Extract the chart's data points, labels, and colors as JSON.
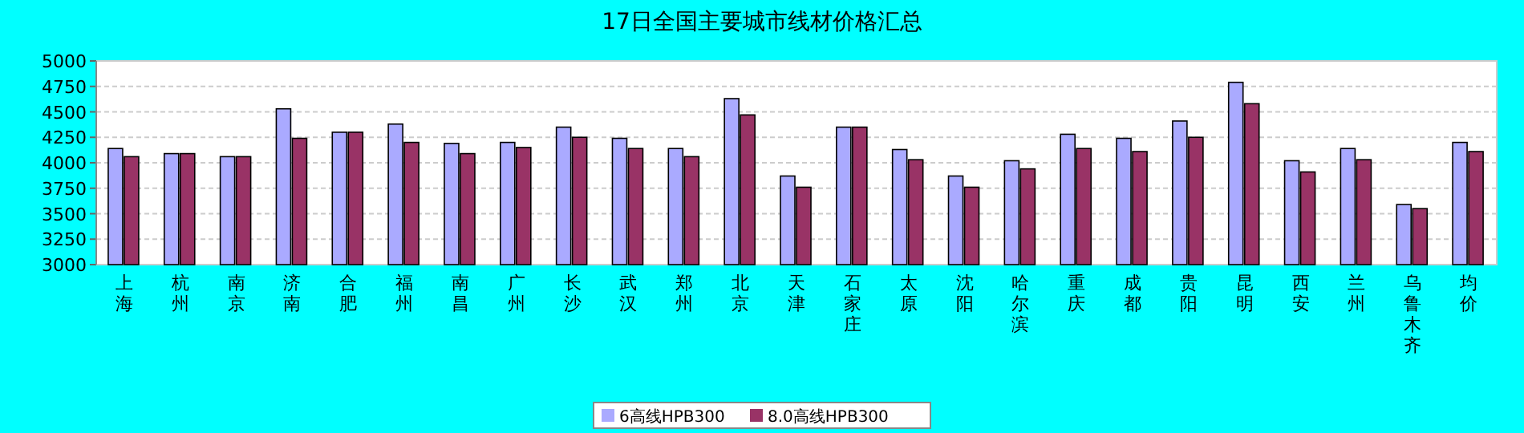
{
  "chart_data": {
    "type": "bar",
    "title": "17日全国主要城市线材价格汇总",
    "categories": [
      "上海",
      "杭州",
      "南京",
      "济南",
      "合肥",
      "福州",
      "南昌",
      "广州",
      "长沙",
      "武汉",
      "郑州",
      "北京",
      "天津",
      "石家庄",
      "太原",
      "沈阳",
      "哈尔滨",
      "重庆",
      "成都",
      "贵阳",
      "昆明",
      "西安",
      "兰州",
      "乌鲁木齐",
      "均价"
    ],
    "series": [
      {
        "name": "6高线HPB300",
        "color": "#aaaaff",
        "values": [
          4140,
          4090,
          4060,
          4530,
          4300,
          4380,
          4190,
          4200,
          4350,
          4240,
          4140,
          4630,
          3870,
          4350,
          4130,
          3870,
          4020,
          4280,
          4240,
          4410,
          4790,
          4020,
          4140,
          3590,
          4200
        ]
      },
      {
        "name": "8.0高线HPB300",
        "color": "#993366",
        "values": [
          4060,
          4090,
          4060,
          4240,
          4300,
          4200,
          4090,
          4150,
          4250,
          4140,
          4060,
          4470,
          3760,
          4350,
          4030,
          3760,
          3940,
          4140,
          4110,
          4250,
          4580,
          3910,
          4030,
          3550,
          4110
        ]
      }
    ],
    "ylim": [
      3000,
      5000
    ],
    "yticks": [
      3000,
      3250,
      3500,
      3750,
      4000,
      4250,
      4500,
      4750,
      5000
    ],
    "grid": "y",
    "legend": "bottom"
  }
}
